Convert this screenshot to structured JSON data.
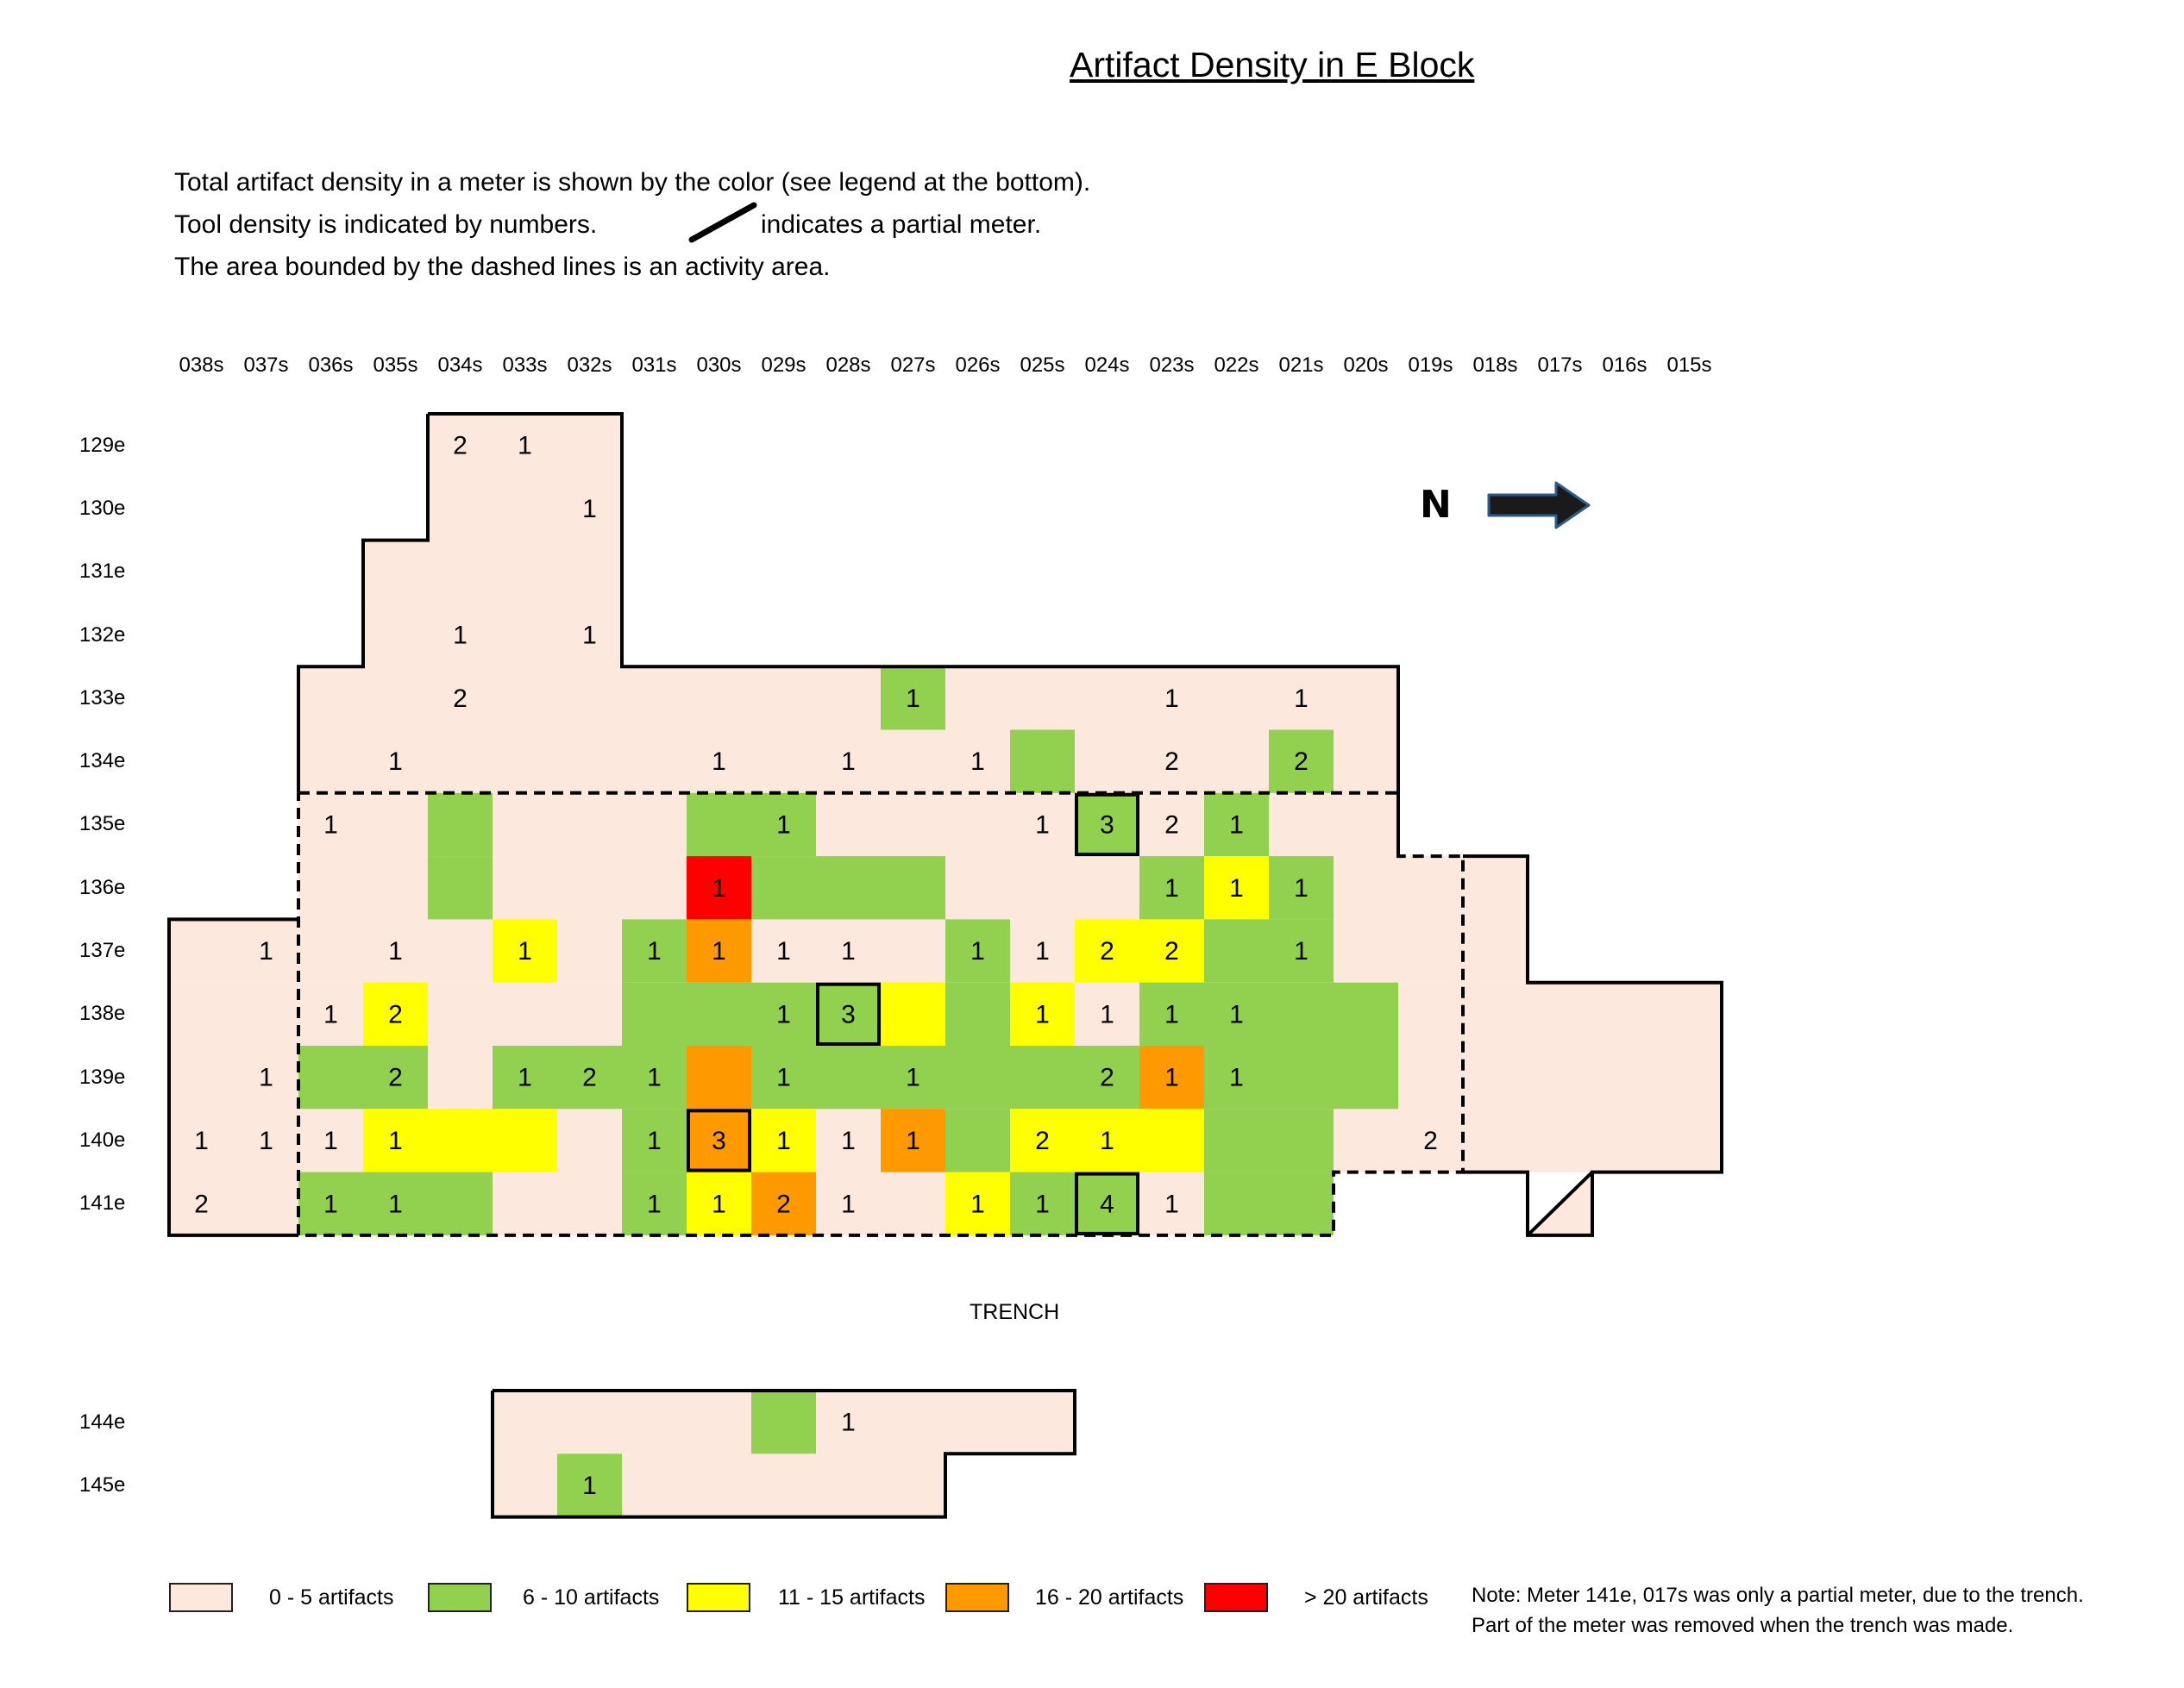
{
  "title": "Artifact Density in E Block",
  "description": {
    "line1": "Total artifact density in a meter is shown by the color (see legend at the bottom).",
    "line2_prefix": "Tool density is indicated by numbers.",
    "line2_suffix": "indicates a partial meter.",
    "line3": "The area bounded by the dashed lines is an activity area."
  },
  "north_label": "N",
  "trench_label": "TRENCH",
  "columns": [
    "038s",
    "037s",
    "036s",
    "035s",
    "034s",
    "033s",
    "032s",
    "031s",
    "030s",
    "029s",
    "028s",
    "027s",
    "026s",
    "025s",
    "024s",
    "023s",
    "022s",
    "021s",
    "020s",
    "019s",
    "018s",
    "017s",
    "016s",
    "015s"
  ],
  "rows": [
    "129e",
    "130e",
    "131e",
    "132e",
    "133e",
    "134e",
    "135e",
    "136e",
    "137e",
    "138e",
    "139e",
    "140e",
    "141e",
    "144e",
    "145e"
  ],
  "colors": {
    "0-5": "#fce8dc",
    "6-10": "#92d050",
    "11-15": "#ffff00",
    "16-20": "#ff9900",
    ">20": "#ff0000",
    "outline": "#000000"
  },
  "legend": [
    {
      "key": "0-5",
      "label": "0 - 5 artifacts"
    },
    {
      "key": "6-10",
      "label": "6 - 10 artifacts"
    },
    {
      "key": "11-15",
      "label": "11 - 15 artifacts"
    },
    {
      "key": "16-20",
      "label": "16 - 20 artifacts"
    },
    {
      "key": ">20",
      "label": "> 20 artifacts"
    }
  ],
  "note": {
    "line1": "Note: Meter 141e, 017s was only a partial meter, due to the trench.",
    "line2": "Part of the meter was removed when the trench was made."
  },
  "excavated_rows": [
    {
      "row": "129e",
      "from": "034s",
      "to": "032s"
    },
    {
      "row": "130e",
      "from": "034s",
      "to": "032s"
    },
    {
      "row": "131e",
      "from": "035s",
      "to": "032s"
    },
    {
      "row": "132e",
      "from": "035s",
      "to": "032s"
    },
    {
      "row": "133e",
      "from": "036s",
      "to": "020s"
    },
    {
      "row": "134e",
      "from": "036s",
      "to": "020s"
    },
    {
      "row": "135e",
      "from": "036s",
      "to": "020s"
    },
    {
      "row": "136e",
      "from": "036s",
      "to": "018s"
    },
    {
      "row": "137e",
      "from": "038s",
      "to": "018s"
    },
    {
      "row": "138e",
      "from": "038s",
      "to": "015s"
    },
    {
      "row": "139e",
      "from": "038s",
      "to": "015s"
    },
    {
      "row": "140e",
      "from": "038s",
      "to": "015s"
    },
    {
      "row": "141e",
      "from": "038s",
      "to": "021s"
    },
    {
      "row": "141e",
      "from": "017s",
      "to": "017s"
    },
    {
      "row": "144e",
      "from": "033s",
      "to": "025s"
    },
    {
      "row": "145e",
      "from": "033s",
      "to": "027s"
    }
  ],
  "density_cells": [
    {
      "row": "133e",
      "col": "027s",
      "density": "6-10"
    },
    {
      "row": "134e",
      "col": "025s",
      "density": "6-10"
    },
    {
      "row": "134e",
      "col": "021s",
      "density": "6-10"
    },
    {
      "row": "135e",
      "col": "034s",
      "density": "6-10"
    },
    {
      "row": "135e",
      "col": "030s",
      "density": "6-10"
    },
    {
      "row": "135e",
      "col": "029s",
      "density": "6-10"
    },
    {
      "row": "135e",
      "col": "024s",
      "density": "6-10"
    },
    {
      "row": "135e",
      "col": "022s",
      "density": "6-10"
    },
    {
      "row": "136e",
      "col": "034s",
      "density": "6-10"
    },
    {
      "row": "136e",
      "col": "030s",
      "density": ">20"
    },
    {
      "row": "136e",
      "col": "029s",
      "density": "6-10"
    },
    {
      "row": "136e",
      "col": "028s",
      "density": "6-10"
    },
    {
      "row": "136e",
      "col": "027s",
      "density": "6-10"
    },
    {
      "row": "136e",
      "col": "023s",
      "density": "6-10"
    },
    {
      "row": "136e",
      "col": "022s",
      "density": "11-15"
    },
    {
      "row": "136e",
      "col": "021s",
      "density": "6-10"
    },
    {
      "row": "137e",
      "col": "033s",
      "density": "11-15"
    },
    {
      "row": "137e",
      "col": "031s",
      "density": "6-10"
    },
    {
      "row": "137e",
      "col": "030s",
      "density": "16-20"
    },
    {
      "row": "137e",
      "col": "026s",
      "density": "6-10"
    },
    {
      "row": "137e",
      "col": "024s",
      "density": "11-15"
    },
    {
      "row": "137e",
      "col": "023s",
      "density": "11-15"
    },
    {
      "row": "137e",
      "col": "022s",
      "density": "6-10"
    },
    {
      "row": "137e",
      "col": "021s",
      "density": "6-10"
    },
    {
      "row": "138e",
      "col": "035s",
      "density": "11-15"
    },
    {
      "row": "138e",
      "col": "031s",
      "density": "6-10"
    },
    {
      "row": "138e",
      "col": "030s",
      "density": "6-10"
    },
    {
      "row": "138e",
      "col": "029s",
      "density": "6-10"
    },
    {
      "row": "138e",
      "col": "028s",
      "density": "6-10"
    },
    {
      "row": "138e",
      "col": "027s",
      "density": "11-15"
    },
    {
      "row": "138e",
      "col": "026s",
      "density": "6-10"
    },
    {
      "row": "138e",
      "col": "025s",
      "density": "11-15"
    },
    {
      "row": "138e",
      "col": "023s",
      "density": "6-10"
    },
    {
      "row": "138e",
      "col": "022s",
      "density": "6-10"
    },
    {
      "row": "138e",
      "col": "021s",
      "density": "6-10"
    },
    {
      "row": "138e",
      "col": "020s",
      "density": "6-10"
    },
    {
      "row": "139e",
      "col": "036s",
      "density": "6-10"
    },
    {
      "row": "139e",
      "col": "035s",
      "density": "6-10"
    },
    {
      "row": "139e",
      "col": "033s",
      "density": "6-10"
    },
    {
      "row": "139e",
      "col": "032s",
      "density": "6-10"
    },
    {
      "row": "139e",
      "col": "031s",
      "density": "6-10"
    },
    {
      "row": "139e",
      "col": "030s",
      "density": "16-20"
    },
    {
      "row": "139e",
      "col": "029s",
      "density": "6-10"
    },
    {
      "row": "139e",
      "col": "028s",
      "density": "6-10"
    },
    {
      "row": "139e",
      "col": "027s",
      "density": "6-10"
    },
    {
      "row": "139e",
      "col": "026s",
      "density": "6-10"
    },
    {
      "row": "139e",
      "col": "025s",
      "density": "6-10"
    },
    {
      "row": "139e",
      "col": "024s",
      "density": "6-10"
    },
    {
      "row": "139e",
      "col": "023s",
      "density": "16-20"
    },
    {
      "row": "139e",
      "col": "022s",
      "density": "6-10"
    },
    {
      "row": "139e",
      "col": "021s",
      "density": "6-10"
    },
    {
      "row": "139e",
      "col": "020s",
      "density": "6-10"
    },
    {
      "row": "140e",
      "col": "035s",
      "density": "11-15"
    },
    {
      "row": "140e",
      "col": "034s",
      "density": "11-15"
    },
    {
      "row": "140e",
      "col": "033s",
      "density": "11-15"
    },
    {
      "row": "140e",
      "col": "031s",
      "density": "6-10"
    },
    {
      "row": "140e",
      "col": "030s",
      "density": "16-20"
    },
    {
      "row": "140e",
      "col": "029s",
      "density": "11-15"
    },
    {
      "row": "140e",
      "col": "027s",
      "density": "16-20"
    },
    {
      "row": "140e",
      "col": "026s",
      "density": "6-10"
    },
    {
      "row": "140e",
      "col": "025s",
      "density": "11-15"
    },
    {
      "row": "140e",
      "col": "024s",
      "density": "11-15"
    },
    {
      "row": "140e",
      "col": "023s",
      "density": "11-15"
    },
    {
      "row": "140e",
      "col": "022s",
      "density": "6-10"
    },
    {
      "row": "140e",
      "col": "021s",
      "density": "6-10"
    },
    {
      "row": "141e",
      "col": "036s",
      "density": "6-10"
    },
    {
      "row": "141e",
      "col": "035s",
      "density": "6-10"
    },
    {
      "row": "141e",
      "col": "034s",
      "density": "6-10"
    },
    {
      "row": "141e",
      "col": "031s",
      "density": "6-10"
    },
    {
      "row": "141e",
      "col": "030s",
      "density": "11-15"
    },
    {
      "row": "141e",
      "col": "029s",
      "density": "16-20"
    },
    {
      "row": "141e",
      "col": "026s",
      "density": "11-15"
    },
    {
      "row": "141e",
      "col": "025s",
      "density": "6-10"
    },
    {
      "row": "141e",
      "col": "024s",
      "density": "6-10"
    },
    {
      "row": "141e",
      "col": "022s",
      "density": "6-10"
    },
    {
      "row": "141e",
      "col": "021s",
      "density": "6-10"
    },
    {
      "row": "144e",
      "col": "029s",
      "density": "6-10"
    },
    {
      "row": "145e",
      "col": "032s",
      "density": "6-10"
    }
  ],
  "tool_counts": [
    {
      "row": "129e",
      "col": "034s",
      "value": "2"
    },
    {
      "row": "129e",
      "col": "033s",
      "value": "1"
    },
    {
      "row": "130e",
      "col": "032s",
      "value": "1"
    },
    {
      "row": "132e",
      "col": "034s",
      "value": "1"
    },
    {
      "row": "132e",
      "col": "032s",
      "value": "1"
    },
    {
      "row": "133e",
      "col": "034s",
      "value": "2"
    },
    {
      "row": "133e",
      "col": "027s",
      "value": "1"
    },
    {
      "row": "133e",
      "col": "023s",
      "value": "1"
    },
    {
      "row": "133e",
      "col": "021s",
      "value": "1"
    },
    {
      "row": "134e",
      "col": "035s",
      "value": "1"
    },
    {
      "row": "134e",
      "col": "030s",
      "value": "1"
    },
    {
      "row": "134e",
      "col": "028s",
      "value": "1"
    },
    {
      "row": "134e",
      "col": "026s",
      "value": "1"
    },
    {
      "row": "134e",
      "col": "023s",
      "value": "2"
    },
    {
      "row": "134e",
      "col": "021s",
      "value": "2"
    },
    {
      "row": "135e",
      "col": "036s",
      "value": "1"
    },
    {
      "row": "135e",
      "col": "029s",
      "value": "1"
    },
    {
      "row": "135e",
      "col": "025s",
      "value": "1"
    },
    {
      "row": "135e",
      "col": "024s",
      "value": "3"
    },
    {
      "row": "135e",
      "col": "023s",
      "value": "2"
    },
    {
      "row": "135e",
      "col": "022s",
      "value": "1"
    },
    {
      "row": "136e",
      "col": "030s",
      "value": "1"
    },
    {
      "row": "136e",
      "col": "023s",
      "value": "1"
    },
    {
      "row": "136e",
      "col": "022s",
      "value": "1"
    },
    {
      "row": "136e",
      "col": "021s",
      "value": "1"
    },
    {
      "row": "137e",
      "col": "037s",
      "value": "1"
    },
    {
      "row": "137e",
      "col": "035s",
      "value": "1"
    },
    {
      "row": "137e",
      "col": "033s",
      "value": "1"
    },
    {
      "row": "137e",
      "col": "031s",
      "value": "1"
    },
    {
      "row": "137e",
      "col": "030s",
      "value": "1"
    },
    {
      "row": "137e",
      "col": "029s",
      "value": "1"
    },
    {
      "row": "137e",
      "col": "028s",
      "value": "1"
    },
    {
      "row": "137e",
      "col": "026s",
      "value": "1"
    },
    {
      "row": "137e",
      "col": "025s",
      "value": "1"
    },
    {
      "row": "137e",
      "col": "024s",
      "value": "2"
    },
    {
      "row": "137e",
      "col": "023s",
      "value": "2"
    },
    {
      "row": "137e",
      "col": "021s",
      "value": "1"
    },
    {
      "row": "138e",
      "col": "036s",
      "value": "1"
    },
    {
      "row": "138e",
      "col": "035s",
      "value": "2"
    },
    {
      "row": "138e",
      "col": "029s",
      "value": "1"
    },
    {
      "row": "138e",
      "col": "028s",
      "value": "3"
    },
    {
      "row": "138e",
      "col": "025s",
      "value": "1"
    },
    {
      "row": "138e",
      "col": "024s",
      "value": "1"
    },
    {
      "row": "138e",
      "col": "023s",
      "value": "1"
    },
    {
      "row": "138e",
      "col": "022s",
      "value": "1"
    },
    {
      "row": "139e",
      "col": "037s",
      "value": "1"
    },
    {
      "row": "139e",
      "col": "035s",
      "value": "2"
    },
    {
      "row": "139e",
      "col": "033s",
      "value": "1"
    },
    {
      "row": "139e",
      "col": "032s",
      "value": "2"
    },
    {
      "row": "139e",
      "col": "031s",
      "value": "1"
    },
    {
      "row": "139e",
      "col": "029s",
      "value": "1"
    },
    {
      "row": "139e",
      "col": "027s",
      "value": "1"
    },
    {
      "row": "139e",
      "col": "024s",
      "value": "2"
    },
    {
      "row": "139e",
      "col": "023s",
      "value": "1"
    },
    {
      "row": "139e",
      "col": "022s",
      "value": "1"
    },
    {
      "row": "140e",
      "col": "038s",
      "value": "1"
    },
    {
      "row": "140e",
      "col": "037s",
      "value": "1"
    },
    {
      "row": "140e",
      "col": "036s",
      "value": "1"
    },
    {
      "row": "140e",
      "col": "035s",
      "value": "1"
    },
    {
      "row": "140e",
      "col": "031s",
      "value": "1"
    },
    {
      "row": "140e",
      "col": "030s",
      "value": "3"
    },
    {
      "row": "140e",
      "col": "029s",
      "value": "1"
    },
    {
      "row": "140e",
      "col": "028s",
      "value": "1"
    },
    {
      "row": "140e",
      "col": "027s",
      "value": "1"
    },
    {
      "row": "140e",
      "col": "025s",
      "value": "2"
    },
    {
      "row": "140e",
      "col": "024s",
      "value": "1"
    },
    {
      "row": "140e",
      "col": "019s",
      "value": "2"
    },
    {
      "row": "141e",
      "col": "038s",
      "value": "2"
    },
    {
      "row": "141e",
      "col": "036s",
      "value": "1"
    },
    {
      "row": "141e",
      "col": "035s",
      "value": "1"
    },
    {
      "row": "141e",
      "col": "031s",
      "value": "1"
    },
    {
      "row": "141e",
      "col": "030s",
      "value": "1"
    },
    {
      "row": "141e",
      "col": "029s",
      "value": "2"
    },
    {
      "row": "141e",
      "col": "028s",
      "value": "1"
    },
    {
      "row": "141e",
      "col": "026s",
      "value": "1"
    },
    {
      "row": "141e",
      "col": "025s",
      "value": "1"
    },
    {
      "row": "141e",
      "col": "024s",
      "value": "4"
    },
    {
      "row": "141e",
      "col": "023s",
      "value": "1"
    },
    {
      "row": "144e",
      "col": "028s",
      "value": "1"
    },
    {
      "row": "145e",
      "col": "032s",
      "value": "1"
    }
  ],
  "highlighted_cells": [
    {
      "row": "135e",
      "col": "024s"
    },
    {
      "row": "138e",
      "col": "028s"
    },
    {
      "row": "140e",
      "col": "030s"
    },
    {
      "row": "141e",
      "col": "024s"
    }
  ],
  "partial_meter": {
    "row": "141e",
    "col": "017s"
  }
}
